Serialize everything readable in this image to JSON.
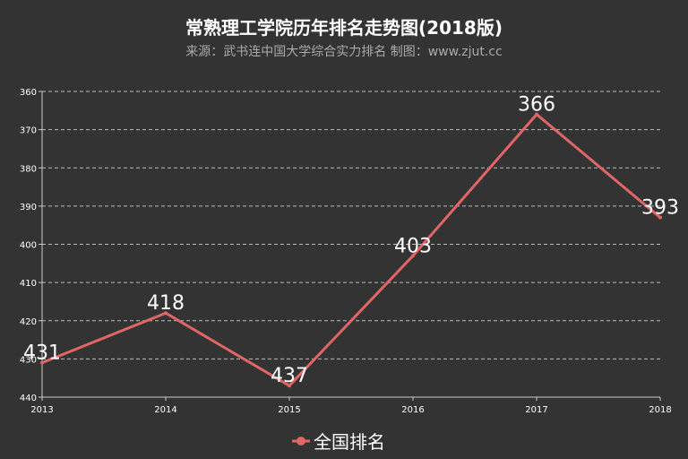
{
  "chart_data": {
    "type": "line",
    "title": "常熟理工学院历年排名走势图(2018版)",
    "subtitle": "来源：武书连中国大学综合实力排名 制图：www.zjut.cc",
    "categories": [
      "2013",
      "2014",
      "2015",
      "2016",
      "2017",
      "2018"
    ],
    "series": [
      {
        "name": "全国排名",
        "values": [
          431,
          418,
          437,
          403,
          366,
          393
        ]
      }
    ],
    "y_ticks": [
      360,
      370,
      380,
      390,
      400,
      410,
      420,
      430,
      440
    ],
    "ylim": [
      360,
      440
    ],
    "y_inverted": true,
    "grid": true,
    "legend_position": "bottom",
    "xlabel": "",
    "ylabel": ""
  },
  "colors": {
    "background": "#333333",
    "series": "#e06666",
    "text": "#ffffff",
    "subtitle": "#aaaaaa",
    "grid": "#bbbbbb",
    "axis": "#cccccc"
  }
}
